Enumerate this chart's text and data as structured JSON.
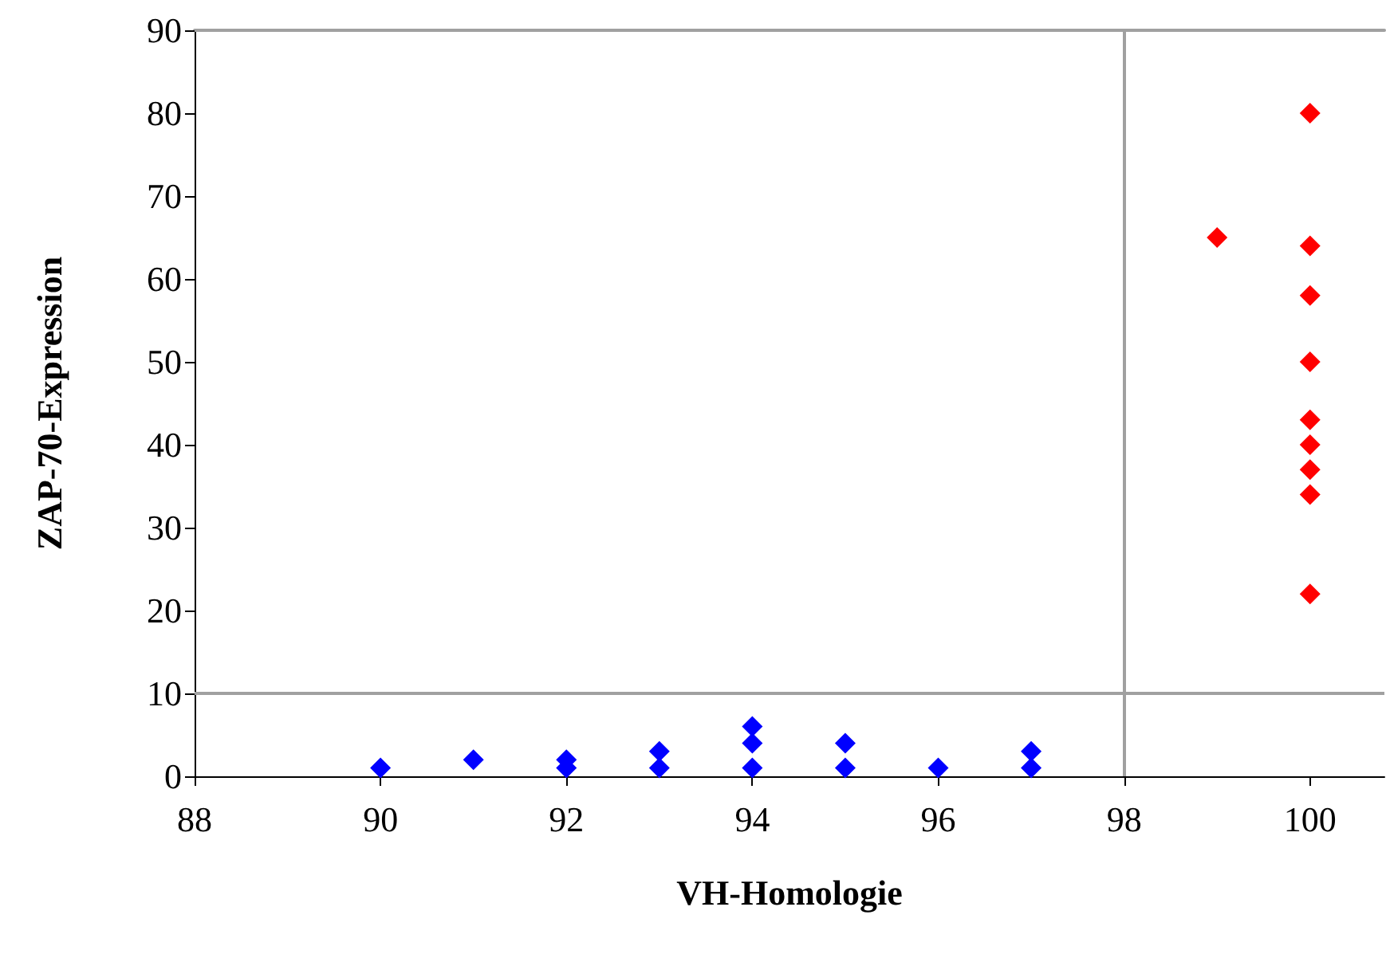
{
  "chart_data": {
    "type": "scatter",
    "xlabel": "VH-Homologie",
    "ylabel": "ZAP-70-Expression",
    "xlim": [
      88,
      100.8
    ],
    "xticks": [
      88,
      90,
      92,
      94,
      96,
      98,
      100
    ],
    "ylim": [
      0,
      90
    ],
    "yticks": [
      0,
      10,
      20,
      30,
      40,
      50,
      60,
      70,
      80,
      90
    ],
    "marker": "diamond",
    "grid": false,
    "series": [
      {
        "color": "#0000ff",
        "x": [
          90,
          91,
          92,
          92,
          93,
          93,
          94,
          94,
          94,
          95,
          95,
          96,
          97,
          97
        ],
        "values": [
          1,
          2,
          2,
          1,
          3,
          1,
          6,
          4,
          1,
          4,
          1,
          1,
          3,
          1
        ]
      },
      {
        "color": "#ff0000",
        "x": [
          99,
          100,
          100,
          100,
          100,
          100,
          100,
          100,
          100,
          100
        ],
        "values": [
          65,
          80,
          64,
          58,
          50,
          43,
          40,
          37,
          34,
          22
        ]
      }
    ],
    "ref_lines": [
      {
        "axis": "x",
        "value": 98,
        "color": "#a0a0a0"
      },
      {
        "axis": "y",
        "value": 10,
        "color": "#a0a0a0"
      }
    ]
  }
}
